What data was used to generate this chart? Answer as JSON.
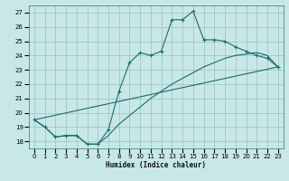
{
  "xlabel": "Humidex (Indice chaleur)",
  "bg_color": "#c8e8e8",
  "grid_color": "#9bbfbf",
  "line_color": "#1a6b6b",
  "xlim": [
    -0.5,
    23.5
  ],
  "ylim": [
    17.5,
    27.5
  ],
  "xticks": [
    0,
    1,
    2,
    3,
    4,
    5,
    6,
    7,
    8,
    9,
    10,
    11,
    12,
    13,
    14,
    15,
    16,
    17,
    18,
    19,
    20,
    21,
    22,
    23
  ],
  "yticks": [
    18,
    19,
    20,
    21,
    22,
    23,
    24,
    25,
    26,
    27
  ],
  "series1_x": [
    0,
    1,
    2,
    3,
    4,
    5,
    6,
    7,
    8,
    9,
    10,
    11,
    12,
    13,
    14,
    15,
    16,
    17,
    18,
    19,
    20,
    21,
    22,
    23
  ],
  "series1_y": [
    19.5,
    19.0,
    18.3,
    18.4,
    18.4,
    17.8,
    17.8,
    18.8,
    21.5,
    23.5,
    24.2,
    24.0,
    24.3,
    26.5,
    26.5,
    27.1,
    25.1,
    25.1,
    25.0,
    24.6,
    24.3,
    24.0,
    23.8,
    23.2
  ],
  "series2_x": [
    0,
    1,
    2,
    3,
    4,
    5,
    6,
    7,
    8,
    9,
    10,
    11,
    12,
    13,
    14,
    15,
    16,
    17,
    18,
    19,
    20,
    21,
    22,
    23
  ],
  "series2_y": [
    19.5,
    19.0,
    18.3,
    18.4,
    18.4,
    17.8,
    17.8,
    18.4,
    19.2,
    19.8,
    20.4,
    21.0,
    21.5,
    22.0,
    22.4,
    22.8,
    23.2,
    23.5,
    23.8,
    24.0,
    24.1,
    24.2,
    24.0,
    23.2
  ],
  "series3_x": [
    0,
    23
  ],
  "series3_y": [
    19.5,
    23.2
  ]
}
